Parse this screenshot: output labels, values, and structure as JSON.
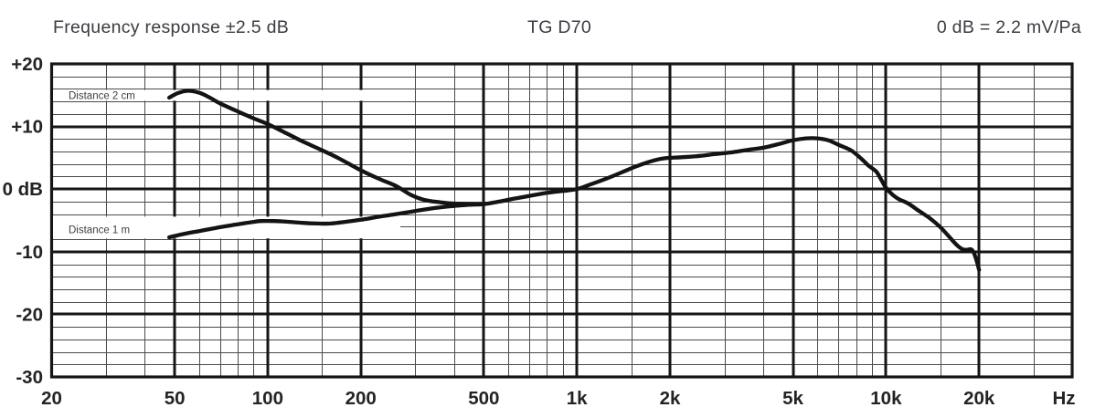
{
  "header": {
    "title_left": "Frequency response ±2.5 dB",
    "title_center": "TG D70",
    "title_right": "0 dB = 2.2 mV/Pa"
  },
  "style": {
    "background": "#ffffff",
    "curve_color": "#141414",
    "grid_major_color": "#161616",
    "grid_minor_color": "#4a4a4a",
    "tick_text_color": "#232327",
    "header_text_color": "#3b3b42",
    "series_label_color": "#3f3f3f"
  },
  "chart_data": {
    "type": "line",
    "title": "Frequency response ±2.5 dB",
    "model": "TG D70",
    "reference": "0 dB = 2.2 mV/Pa",
    "grid": "log-frequency graph paper, majors every decade step, minors between",
    "legend_position": "labels inside plot at left",
    "x_axis": {
      "label": "Hz",
      "scale": "log",
      "range_hz": [
        20,
        40000
      ],
      "major_ticks_hz": [
        50,
        100,
        200,
        500,
        1000,
        2000,
        5000,
        10000,
        20000
      ],
      "minor_ticks_hz": [
        30,
        40,
        60,
        70,
        80,
        90,
        150,
        300,
        400,
        600,
        700,
        800,
        900,
        1500,
        3000,
        4000,
        6000,
        7000,
        8000,
        9000,
        15000,
        30000
      ],
      "tick_labels": [
        {
          "hz": 20,
          "label": "20"
        },
        {
          "hz": 50,
          "label": "50"
        },
        {
          "hz": 100,
          "label": "100"
        },
        {
          "hz": 200,
          "label": "200"
        },
        {
          "hz": 500,
          "label": "500"
        },
        {
          "hz": 1000,
          "label": "1k"
        },
        {
          "hz": 2000,
          "label": "2k"
        },
        {
          "hz": 5000,
          "label": "5k"
        },
        {
          "hz": 10000,
          "label": "10k"
        },
        {
          "hz": 20000,
          "label": "20k"
        }
      ]
    },
    "y_axis": {
      "unit": "dB",
      "range_db": [
        -30,
        20
      ],
      "major_step_db": 10,
      "minor_step_db": 2,
      "ticks": [
        {
          "db": 20,
          "label": "+20"
        },
        {
          "db": 10,
          "label": "+10"
        },
        {
          "db": 0,
          "label": "0 dB"
        },
        {
          "db": -10,
          "label": "-10"
        },
        {
          "db": -20,
          "label": "-20"
        },
        {
          "db": -30,
          "label": "-30"
        }
      ]
    },
    "series": [
      {
        "name": "Distance 2 cm",
        "points_hz_db": [
          [
            48,
            14.6
          ],
          [
            51,
            15.3
          ],
          [
            55,
            15.7
          ],
          [
            60,
            15.4
          ],
          [
            65,
            14.6
          ],
          [
            70,
            13.7
          ],
          [
            80,
            12.4
          ],
          [
            90,
            11.3
          ],
          [
            100,
            10.4
          ],
          [
            115,
            8.9
          ],
          [
            130,
            7.6
          ],
          [
            150,
            6.2
          ],
          [
            170,
            4.9
          ],
          [
            200,
            3.0
          ],
          [
            230,
            1.6
          ],
          [
            260,
            0.5
          ],
          [
            290,
            -0.9
          ],
          [
            320,
            -1.7
          ],
          [
            360,
            -2.1
          ],
          [
            400,
            -2.3
          ],
          [
            450,
            -2.4
          ],
          [
            500,
            -2.4
          ]
        ]
      },
      {
        "name": "Distance 1 m",
        "points_hz_db": [
          [
            48,
            -7.7
          ],
          [
            53,
            -7.2
          ],
          [
            60,
            -6.7
          ],
          [
            68,
            -6.2
          ],
          [
            78,
            -5.7
          ],
          [
            88,
            -5.3
          ],
          [
            95,
            -5.1
          ],
          [
            105,
            -5.1
          ],
          [
            115,
            -5.2
          ],
          [
            130,
            -5.4
          ],
          [
            145,
            -5.5
          ],
          [
            160,
            -5.5
          ],
          [
            180,
            -5.2
          ],
          [
            200,
            -4.9
          ],
          [
            230,
            -4.4
          ],
          [
            260,
            -4.0
          ],
          [
            300,
            -3.5
          ],
          [
            350,
            -3.0
          ],
          [
            400,
            -2.7
          ],
          [
            450,
            -2.5
          ],
          [
            500,
            -2.4
          ],
          [
            560,
            -2.0
          ],
          [
            630,
            -1.5
          ],
          [
            700,
            -1.1
          ],
          [
            800,
            -0.6
          ],
          [
            900,
            -0.3
          ],
          [
            1000,
            0.0
          ],
          [
            1100,
            0.7
          ],
          [
            1250,
            1.7
          ],
          [
            1400,
            2.7
          ],
          [
            1550,
            3.6
          ],
          [
            1700,
            4.3
          ],
          [
            1850,
            4.8
          ],
          [
            2000,
            5.0
          ],
          [
            2200,
            5.1
          ],
          [
            2500,
            5.3
          ],
          [
            2800,
            5.6
          ],
          [
            3200,
            5.9
          ],
          [
            3600,
            6.3
          ],
          [
            4000,
            6.6
          ],
          [
            4500,
            7.2
          ],
          [
            5000,
            7.8
          ],
          [
            5500,
            8.1
          ],
          [
            6000,
            8.1
          ],
          [
            6500,
            7.8
          ],
          [
            7000,
            7.1
          ],
          [
            7700,
            6.2
          ],
          [
            8300,
            4.9
          ],
          [
            8800,
            3.7
          ],
          [
            9300,
            2.8
          ],
          [
            9700,
            1.3
          ],
          [
            10000,
            0.2
          ],
          [
            10500,
            -0.9
          ],
          [
            11000,
            -1.6
          ],
          [
            11800,
            -2.3
          ],
          [
            12800,
            -3.5
          ],
          [
            13900,
            -4.7
          ],
          [
            15000,
            -6.1
          ],
          [
            16000,
            -7.6
          ],
          [
            17000,
            -9.0
          ],
          [
            17700,
            -9.6
          ],
          [
            18300,
            -9.7
          ],
          [
            18800,
            -9.6
          ],
          [
            19200,
            -10.1
          ],
          [
            19600,
            -11.3
          ],
          [
            20000,
            -12.9
          ]
        ]
      }
    ]
  }
}
